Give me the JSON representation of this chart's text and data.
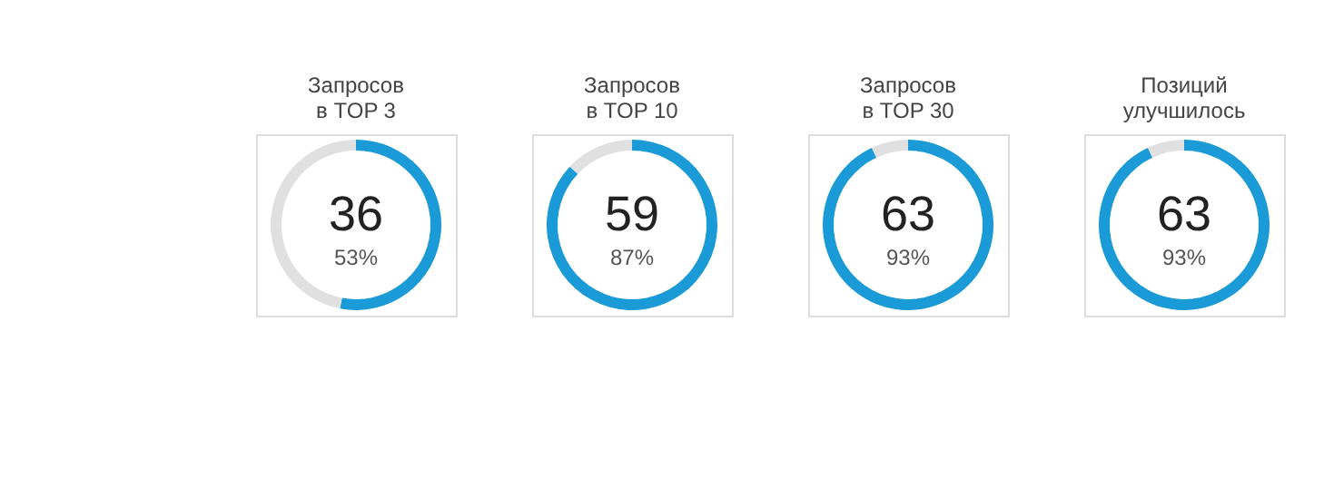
{
  "chart_data": [
    {
      "type": "donut",
      "title": [
        "Запросов",
        "в TOP 3"
      ],
      "categories": [
        null,
        null
      ],
      "values": [
        53,
        47
      ],
      "colors": [
        "#1a9ad6",
        "#e0e0e0"
      ],
      "annotations": [
        "36",
        "53%"
      ]
    },
    {
      "type": "donut",
      "title": [
        "Запросов",
        "в TOP 10"
      ],
      "categories": [
        null,
        null
      ],
      "values": [
        87,
        13
      ],
      "colors": [
        "#1a9ad6",
        "#e0e0e0"
      ],
      "annotations": [
        "59",
        "87%"
      ]
    },
    {
      "type": "donut",
      "title": [
        "Запросов",
        "в TOP 30"
      ],
      "categories": [
        null,
        null
      ],
      "values": [
        93,
        7
      ],
      "colors": [
        "#1a9ad6",
        "#e0e0e0"
      ],
      "annotations": [
        "63",
        "93%"
      ]
    },
    {
      "type": "donut",
      "title": [
        "Позиций",
        "улучшилось"
      ],
      "categories": [
        null,
        null
      ],
      "values": [
        93,
        7
      ],
      "colors": [
        "#1a9ad6",
        "#e0e0e0"
      ],
      "annotations": [
        "63",
        "93%"
      ]
    }
  ]
}
